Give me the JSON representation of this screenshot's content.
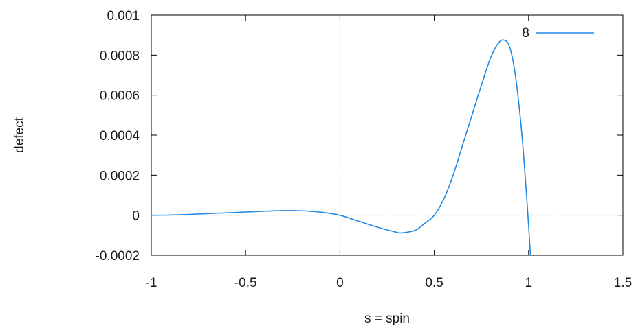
{
  "chart_data": {
    "type": "line",
    "xlabel": "s = spin",
    "ylabel": "defect",
    "xlim": [
      -1,
      1.5
    ],
    "ylim": [
      -0.0002,
      0.001
    ],
    "xticks": [
      "-1",
      "-0.5",
      "0",
      "0.5",
      "1",
      "1.5"
    ],
    "yticks": [
      "-0.0002",
      "0",
      "0.0002",
      "0.0004",
      "0.0006",
      "0.0008",
      "0.001"
    ],
    "grid": false,
    "zero_lines": true,
    "legend_position": "top-right",
    "series": [
      {
        "name": "8",
        "color": "#1e88e5",
        "x": [
          -1.0,
          -0.9,
          -0.8,
          -0.7,
          -0.6,
          -0.5,
          -0.4,
          -0.3,
          -0.2,
          -0.1,
          0.0,
          0.1,
          0.2,
          0.3,
          0.33,
          0.4,
          0.45,
          0.5,
          0.55,
          0.6,
          0.65,
          0.7,
          0.75,
          0.8,
          0.84,
          0.87,
          0.9,
          0.93,
          0.96,
          0.98,
          1.0,
          1.01
        ],
        "y": [
          0.0,
          1e-06,
          4e-06,
          8e-06,
          1.2e-05,
          1.6e-05,
          2e-05,
          2.3e-05,
          2.2e-05,
          1.5e-05,
          0.0,
          -3e-05,
          -6e-05,
          -8.5e-05,
          -8.8e-05,
          -7.5e-05,
          -4e-05,
          0.0,
          8e-05,
          0.0002,
          0.00035,
          0.0005,
          0.00065,
          0.00079,
          0.00086,
          0.000875,
          0.00084,
          0.0007,
          0.00045,
          0.00022,
          -5e-05,
          -0.0002
        ]
      }
    ]
  }
}
